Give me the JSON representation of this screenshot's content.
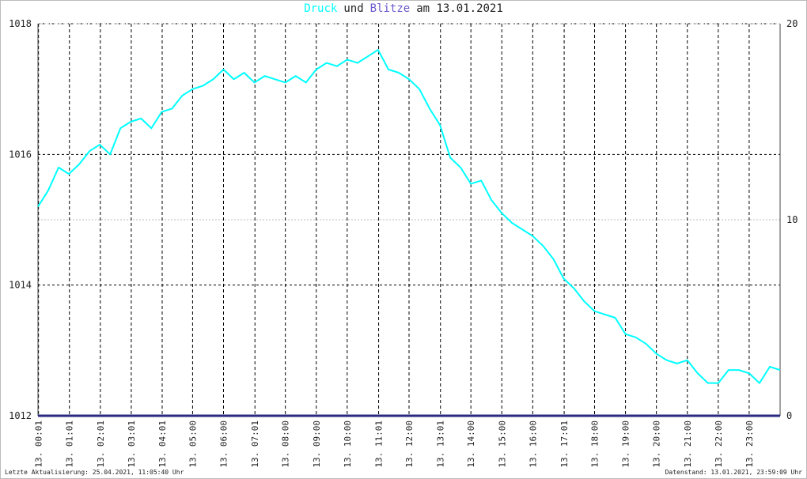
{
  "chart_data": {
    "type": "line",
    "title_connector": "und",
    "title_date": "am 13.01.2021",
    "xlim": [
      0,
      1440
    ],
    "xticks": [
      {
        "value": 1,
        "label": "13. 00:01"
      },
      {
        "value": 61,
        "label": "13. 01:01"
      },
      {
        "value": 121,
        "label": "13. 02:01"
      },
      {
        "value": 181,
        "label": "13. 03:01"
      },
      {
        "value": 241,
        "label": "13. 04:01"
      },
      {
        "value": 300,
        "label": "13. 05:00"
      },
      {
        "value": 360,
        "label": "13. 06:00"
      },
      {
        "value": 421,
        "label": "13. 07:01"
      },
      {
        "value": 480,
        "label": "13. 08:00"
      },
      {
        "value": 540,
        "label": "13. 09:00"
      },
      {
        "value": 600,
        "label": "13. 10:00"
      },
      {
        "value": 661,
        "label": "13. 11:01"
      },
      {
        "value": 720,
        "label": "13. 12:00"
      },
      {
        "value": 781,
        "label": "13. 13:01"
      },
      {
        "value": 840,
        "label": "13. 14:00"
      },
      {
        "value": 900,
        "label": "13. 15:00"
      },
      {
        "value": 960,
        "label": "13. 16:00"
      },
      {
        "value": 1021,
        "label": "13. 17:01"
      },
      {
        "value": 1080,
        "label": "13. 18:00"
      },
      {
        "value": 1140,
        "label": "13. 19:00"
      },
      {
        "value": 1200,
        "label": "13. 20:00"
      },
      {
        "value": 1260,
        "label": "13. 21:00"
      },
      {
        "value": 1320,
        "label": "13. 22:00"
      },
      {
        "value": 1380,
        "label": "13. 23:00"
      }
    ],
    "ylim": [
      1012,
      1018
    ],
    "yticks": [
      1012,
      1014,
      1016,
      1018
    ],
    "y2lim": [
      0,
      20
    ],
    "y2ticks": [
      0,
      10,
      20
    ],
    "grid": true,
    "series": [
      {
        "name": "Druck",
        "color": "#00ffff",
        "x": [
          0,
          20,
          40,
          60,
          80,
          100,
          120,
          140,
          160,
          180,
          200,
          220,
          240,
          260,
          280,
          300,
          320,
          340,
          360,
          380,
          400,
          420,
          440,
          460,
          480,
          500,
          520,
          540,
          560,
          580,
          600,
          620,
          640,
          660,
          680,
          700,
          720,
          740,
          760,
          780,
          800,
          820,
          840,
          860,
          880,
          900,
          920,
          940,
          960,
          980,
          1000,
          1020,
          1040,
          1060,
          1080,
          1100,
          1120,
          1140,
          1160,
          1180,
          1200,
          1220,
          1240,
          1260,
          1280,
          1300,
          1320,
          1340,
          1360,
          1380,
          1400,
          1420,
          1440
        ],
        "values": [
          1015.2,
          1015.45,
          1015.8,
          1015.7,
          1015.85,
          1016.05,
          1016.15,
          1016.0,
          1016.4,
          1016.5,
          1016.55,
          1016.4,
          1016.65,
          1016.7,
          1016.9,
          1017.0,
          1017.05,
          1017.15,
          1017.3,
          1017.15,
          1017.25,
          1017.1,
          1017.2,
          1017.15,
          1017.1,
          1017.2,
          1017.1,
          1017.3,
          1017.4,
          1017.35,
          1017.45,
          1017.4,
          1017.5,
          1017.6,
          1017.3,
          1017.25,
          1017.15,
          1017.0,
          1016.7,
          1016.45,
          1015.95,
          1015.8,
          1015.55,
          1015.6,
          1015.3,
          1015.1,
          1014.95,
          1014.85,
          1014.75,
          1014.6,
          1014.4,
          1014.1,
          1013.95,
          1013.75,
          1013.6,
          1013.55,
          1013.5,
          1013.25,
          1013.2,
          1013.1,
          1012.95,
          1012.85,
          1012.8,
          1012.85,
          1012.65,
          1012.5,
          1012.5,
          1012.7,
          1012.7,
          1012.65,
          1012.5,
          1012.75,
          1012.7
        ]
      },
      {
        "name": "Blitze",
        "color": "#2a2a80",
        "axis": "y2",
        "x": [
          0,
          1440
        ],
        "values": [
          0,
          0
        ]
      }
    ],
    "footer_left": "Letzte Aktualisierung: 25.04.2021, 11:05:40 Uhr",
    "footer_right": "Datenstand: 13.01.2021, 23:59:09 Uhr"
  }
}
